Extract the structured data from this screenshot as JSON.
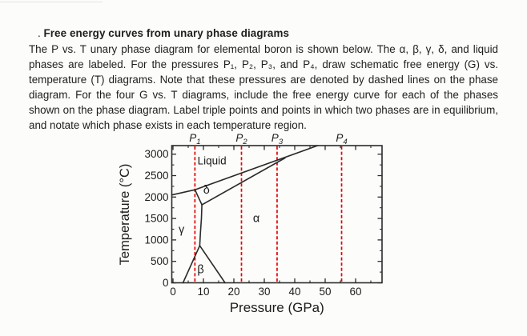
{
  "problem": {
    "title_prefix": ".",
    "title": "Free energy curves from unary phase diagrams",
    "body": "The P vs. T unary phase diagram for elemental boron is shown below. The α, β, γ, δ, and liquid phases are labeled. For the pressures P₁, P₂, P₃, and P₄, draw schematic free energy (G) vs. temperature (T) diagrams. Note that these pressures are denoted by dashed lines on the phase diagram. For the four G vs. T diagrams, include the free energy curve for each of the phases shown on the phase diagram. Label triple points and points in which two phases are in equilibrium, and notate which phase exists in each temperature region."
  },
  "chart_data": {
    "type": "line",
    "title": "",
    "xlabel": "Pressure (GPa)",
    "ylabel": "Temperature (°C)",
    "xlim": [
      0,
      69
    ],
    "ylim": [
      0,
      3200
    ],
    "x_ticks": [
      0,
      10,
      20,
      30,
      40,
      50,
      60
    ],
    "y_ticks": [
      0,
      500,
      1000,
      1500,
      2000,
      2500,
      3000
    ],
    "grid": false,
    "colors": {
      "boundary": "#2b2b2b",
      "pressure_line": "#e60000"
    },
    "pressure_lines": [
      {
        "label": "P",
        "sub": "1",
        "gpa": 7.2
      },
      {
        "label": "P",
        "sub": "2",
        "gpa": 22.5
      },
      {
        "label": "P",
        "sub": "3",
        "gpa": 34.2
      },
      {
        "label": "P",
        "sub": "4",
        "gpa": 55.4
      }
    ],
    "phase_labels": [
      {
        "text": "Liquid",
        "p": 12.8,
        "t": 2850
      },
      {
        "text": "δ",
        "p": 11.0,
        "t": 2160
      },
      {
        "text": "γ",
        "p": 2.8,
        "t": 1240
      },
      {
        "text": "α",
        "p": 27.4,
        "t": 1500
      },
      {
        "text": "β",
        "p": 9.1,
        "t": 310
      }
    ],
    "boundaries": [
      {
        "name": "gamma-liquid",
        "points": [
          [
            -0.4,
            2048
          ],
          [
            7.2,
            2170
          ]
        ]
      },
      {
        "name": "delta-liquid-then-alpha-liquid",
        "points": [
          [
            7.2,
            2170
          ],
          [
            47.5,
            3200
          ]
        ]
      },
      {
        "name": "alpha-delta",
        "points": [
          [
            9.5,
            1820
          ],
          [
            36.8,
            2910
          ]
        ]
      },
      {
        "name": "gamma-delta",
        "points": [
          [
            7.2,
            2170
          ],
          [
            9.5,
            1820
          ]
        ]
      },
      {
        "name": "gamma-alpha",
        "points": [
          [
            9.5,
            1820
          ],
          [
            9.35,
            1500
          ],
          [
            9.0,
            1150
          ],
          [
            8.8,
            865
          ]
        ]
      },
      {
        "name": "gamma-beta",
        "points": [
          [
            8.8,
            865
          ],
          [
            3.3,
            0
          ]
        ]
      },
      {
        "name": "beta-alpha",
        "points": [
          [
            8.8,
            865
          ],
          [
            17.1,
            0
          ]
        ]
      }
    ],
    "triple_points": [
      {
        "phases": "γ–δ–liquid",
        "p": 7.2,
        "t": 2170
      },
      {
        "phases": "γ–δ–α",
        "p": 9.5,
        "t": 1820
      },
      {
        "phases": "γ–β–α",
        "p": 8.8,
        "t": 865
      },
      {
        "phases": "δ–α–liquid",
        "p": 34.2,
        "t": 2850
      }
    ]
  }
}
